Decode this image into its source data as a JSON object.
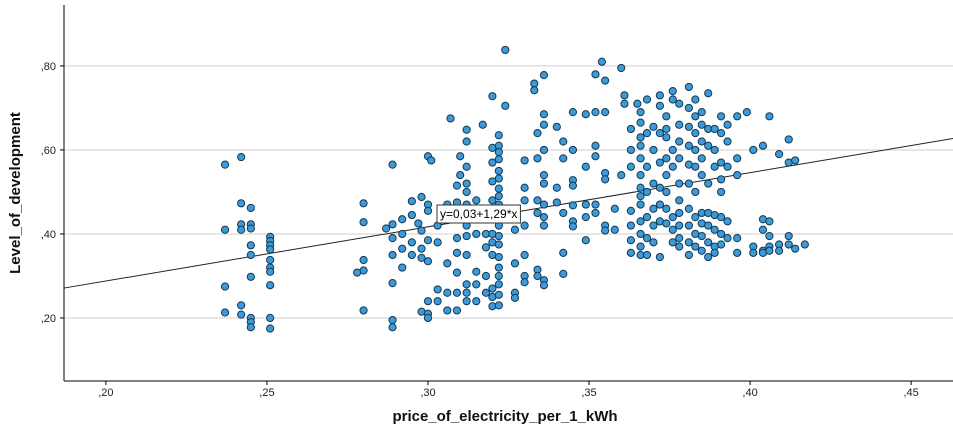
{
  "chart_data": {
    "type": "scatter",
    "xlabel": "price_of_electricity_per_1_kWh",
    "ylabel": "Level_of_development",
    "xlim": [
      0.187,
      0.463
    ],
    "ylim": [
      0.05,
      0.945
    ],
    "x_ticks": [
      {
        "value": 0.2,
        "label": ",20"
      },
      {
        "value": 0.25,
        "label": ",25"
      },
      {
        "value": 0.3,
        "label": ",30"
      },
      {
        "value": 0.35,
        "label": ",35"
      },
      {
        "value": 0.4,
        "label": ",40"
      },
      {
        "value": 0.45,
        "label": ",45"
      }
    ],
    "y_ticks": [
      {
        "value": 0.2,
        "label": ",20"
      },
      {
        "value": 0.4,
        "label": ",40"
      },
      {
        "value": 0.6,
        "label": ",60"
      },
      {
        "value": 0.8,
        "label": ",80"
      }
    ],
    "grid": "horizontal",
    "fit_line": {
      "intercept": 0.03,
      "slope": 1.29,
      "label": "y=0,03+1,29*x"
    },
    "point_fill": "#3d9ad6",
    "point_stroke": "#123a55",
    "points": [
      [
        0.237,
        0.565
      ],
      [
        0.242,
        0.583
      ],
      [
        0.237,
        0.41
      ],
      [
        0.237,
        0.275
      ],
      [
        0.237,
        0.213
      ],
      [
        0.242,
        0.473
      ],
      [
        0.242,
        0.423
      ],
      [
        0.242,
        0.41
      ],
      [
        0.242,
        0.23
      ],
      [
        0.242,
        0.208
      ],
      [
        0.245,
        0.462
      ],
      [
        0.245,
        0.423
      ],
      [
        0.245,
        0.413
      ],
      [
        0.245,
        0.373
      ],
      [
        0.245,
        0.35
      ],
      [
        0.245,
        0.298
      ],
      [
        0.245,
        0.2
      ],
      [
        0.245,
        0.19
      ],
      [
        0.245,
        0.178
      ],
      [
        0.251,
        0.393
      ],
      [
        0.251,
        0.383
      ],
      [
        0.251,
        0.373
      ],
      [
        0.251,
        0.363
      ],
      [
        0.251,
        0.338
      ],
      [
        0.251,
        0.32
      ],
      [
        0.251,
        0.31
      ],
      [
        0.251,
        0.278
      ],
      [
        0.251,
        0.2
      ],
      [
        0.251,
        0.175
      ],
      [
        0.28,
        0.473
      ],
      [
        0.28,
        0.428
      ],
      [
        0.28,
        0.338
      ],
      [
        0.28,
        0.313
      ],
      [
        0.278,
        0.308
      ],
      [
        0.28,
        0.218
      ],
      [
        0.289,
        0.565
      ],
      [
        0.289,
        0.423
      ],
      [
        0.289,
        0.39
      ],
      [
        0.289,
        0.35
      ],
      [
        0.289,
        0.283
      ],
      [
        0.289,
        0.195
      ],
      [
        0.289,
        0.178
      ],
      [
        0.287,
        0.413
      ],
      [
        0.292,
        0.435
      ],
      [
        0.292,
        0.4
      ],
      [
        0.292,
        0.365
      ],
      [
        0.292,
        0.32
      ],
      [
        0.295,
        0.478
      ],
      [
        0.295,
        0.445
      ],
      [
        0.295,
        0.38
      ],
      [
        0.295,
        0.35
      ],
      [
        0.298,
        0.488
      ],
      [
        0.297,
        0.425
      ],
      [
        0.298,
        0.408
      ],
      [
        0.298,
        0.365
      ],
      [
        0.298,
        0.343
      ],
      [
        0.298,
        0.215
      ],
      [
        0.3,
        0.585
      ],
      [
        0.301,
        0.575
      ],
      [
        0.3,
        0.47
      ],
      [
        0.3,
        0.455
      ],
      [
        0.3,
        0.385
      ],
      [
        0.3,
        0.335
      ],
      [
        0.3,
        0.24
      ],
      [
        0.3,
        0.21
      ],
      [
        0.3,
        0.2
      ],
      [
        0.303,
        0.42
      ],
      [
        0.303,
        0.38
      ],
      [
        0.303,
        0.268
      ],
      [
        0.303,
        0.24
      ],
      [
        0.306,
        0.47
      ],
      [
        0.306,
        0.45
      ],
      [
        0.306,
        0.33
      ],
      [
        0.306,
        0.26
      ],
      [
        0.306,
        0.218
      ],
      [
        0.309,
        0.515
      ],
      [
        0.309,
        0.475
      ],
      [
        0.309,
        0.438
      ],
      [
        0.309,
        0.39
      ],
      [
        0.309,
        0.355
      ],
      [
        0.309,
        0.308
      ],
      [
        0.309,
        0.26
      ],
      [
        0.309,
        0.218
      ],
      [
        0.307,
        0.675
      ],
      [
        0.312,
        0.648
      ],
      [
        0.312,
        0.62
      ],
      [
        0.31,
        0.585
      ],
      [
        0.312,
        0.56
      ],
      [
        0.31,
        0.54
      ],
      [
        0.312,
        0.52
      ],
      [
        0.312,
        0.5
      ],
      [
        0.312,
        0.47
      ],
      [
        0.312,
        0.45
      ],
      [
        0.312,
        0.42
      ],
      [
        0.312,
        0.395
      ],
      [
        0.312,
        0.35
      ],
      [
        0.312,
        0.28
      ],
      [
        0.312,
        0.26
      ],
      [
        0.312,
        0.24
      ],
      [
        0.315,
        0.48
      ],
      [
        0.315,
        0.45
      ],
      [
        0.315,
        0.4
      ],
      [
        0.315,
        0.31
      ],
      [
        0.315,
        0.28
      ],
      [
        0.315,
        0.24
      ],
      [
        0.317,
        0.66
      ],
      [
        0.318,
        0.45
      ],
      [
        0.318,
        0.4
      ],
      [
        0.318,
        0.368
      ],
      [
        0.318,
        0.3
      ],
      [
        0.318,
        0.26
      ],
      [
        0.32,
        0.728
      ],
      [
        0.32,
        0.605
      ],
      [
        0.32,
        0.57
      ],
      [
        0.32,
        0.525
      ],
      [
        0.32,
        0.48
      ],
      [
        0.32,
        0.44
      ],
      [
        0.32,
        0.4
      ],
      [
        0.32,
        0.38
      ],
      [
        0.32,
        0.35
      ],
      [
        0.32,
        0.27
      ],
      [
        0.32,
        0.25
      ],
      [
        0.32,
        0.228
      ],
      [
        0.322,
        0.635
      ],
      [
        0.322,
        0.61
      ],
      [
        0.322,
        0.595
      ],
      [
        0.322,
        0.578
      ],
      [
        0.322,
        0.55
      ],
      [
        0.322,
        0.532
      ],
      [
        0.322,
        0.508
      ],
      [
        0.322,
        0.49
      ],
      [
        0.322,
        0.47
      ],
      [
        0.322,
        0.45
      ],
      [
        0.322,
        0.42
      ],
      [
        0.322,
        0.395
      ],
      [
        0.322,
        0.375
      ],
      [
        0.322,
        0.345
      ],
      [
        0.322,
        0.32
      ],
      [
        0.322,
        0.3
      ],
      [
        0.322,
        0.28
      ],
      [
        0.322,
        0.255
      ],
      [
        0.322,
        0.23
      ],
      [
        0.324,
        0.705
      ],
      [
        0.324,
        0.838
      ],
      [
        0.327,
        0.45
      ],
      [
        0.327,
        0.41
      ],
      [
        0.327,
        0.33
      ],
      [
        0.327,
        0.26
      ],
      [
        0.327,
        0.248
      ],
      [
        0.33,
        0.575
      ],
      [
        0.33,
        0.51
      ],
      [
        0.33,
        0.48
      ],
      [
        0.33,
        0.42
      ],
      [
        0.33,
        0.35
      ],
      [
        0.33,
        0.3
      ],
      [
        0.33,
        0.285
      ],
      [
        0.333,
        0.758
      ],
      [
        0.333,
        0.742
      ],
      [
        0.334,
        0.64
      ],
      [
        0.334,
        0.58
      ],
      [
        0.334,
        0.48
      ],
      [
        0.334,
        0.45
      ],
      [
        0.334,
        0.315
      ],
      [
        0.334,
        0.3
      ],
      [
        0.336,
        0.778
      ],
      [
        0.336,
        0.685
      ],
      [
        0.336,
        0.66
      ],
      [
        0.336,
        0.6
      ],
      [
        0.336,
        0.54
      ],
      [
        0.336,
        0.52
      ],
      [
        0.336,
        0.47
      ],
      [
        0.336,
        0.44
      ],
      [
        0.336,
        0.42
      ],
      [
        0.336,
        0.29
      ],
      [
        0.336,
        0.278
      ],
      [
        0.34,
        0.655
      ],
      [
        0.34,
        0.51
      ],
      [
        0.34,
        0.475
      ],
      [
        0.342,
        0.62
      ],
      [
        0.342,
        0.58
      ],
      [
        0.342,
        0.45
      ],
      [
        0.342,
        0.355
      ],
      [
        0.342,
        0.305
      ],
      [
        0.345,
        0.69
      ],
      [
        0.345,
        0.6
      ],
      [
        0.345,
        0.528
      ],
      [
        0.345,
        0.515
      ],
      [
        0.345,
        0.468
      ],
      [
        0.345,
        0.43
      ],
      [
        0.345,
        0.418
      ],
      [
        0.349,
        0.685
      ],
      [
        0.349,
        0.56
      ],
      [
        0.349,
        0.47
      ],
      [
        0.349,
        0.44
      ],
      [
        0.349,
        0.385
      ],
      [
        0.352,
        0.78
      ],
      [
        0.352,
        0.69
      ],
      [
        0.352,
        0.61
      ],
      [
        0.352,
        0.585
      ],
      [
        0.352,
        0.47
      ],
      [
        0.352,
        0.45
      ],
      [
        0.354,
        0.81
      ],
      [
        0.355,
        0.765
      ],
      [
        0.355,
        0.69
      ],
      [
        0.355,
        0.545
      ],
      [
        0.355,
        0.53
      ],
      [
        0.355,
        0.42
      ],
      [
        0.355,
        0.408
      ],
      [
        0.358,
        0.46
      ],
      [
        0.358,
        0.41
      ],
      [
        0.36,
        0.795
      ],
      [
        0.36,
        0.54
      ],
      [
        0.361,
        0.73
      ],
      [
        0.361,
        0.71
      ],
      [
        0.363,
        0.65
      ],
      [
        0.363,
        0.6
      ],
      [
        0.363,
        0.56
      ],
      [
        0.363,
        0.455
      ],
      [
        0.363,
        0.42
      ],
      [
        0.363,
        0.385
      ],
      [
        0.363,
        0.355
      ],
      [
        0.365,
        0.71
      ],
      [
        0.366,
        0.69
      ],
      [
        0.366,
        0.665
      ],
      [
        0.366,
        0.63
      ],
      [
        0.366,
        0.61
      ],
      [
        0.366,
        0.58
      ],
      [
        0.366,
        0.54
      ],
      [
        0.366,
        0.51
      ],
      [
        0.366,
        0.49
      ],
      [
        0.366,
        0.47
      ],
      [
        0.366,
        0.43
      ],
      [
        0.366,
        0.4
      ],
      [
        0.366,
        0.37
      ],
      [
        0.366,
        0.35
      ],
      [
        0.368,
        0.72
      ],
      [
        0.368,
        0.64
      ],
      [
        0.368,
        0.56
      ],
      [
        0.368,
        0.5
      ],
      [
        0.368,
        0.44
      ],
      [
        0.368,
        0.39
      ],
      [
        0.368,
        0.35
      ],
      [
        0.37,
        0.655
      ],
      [
        0.37,
        0.6
      ],
      [
        0.37,
        0.52
      ],
      [
        0.37,
        0.46
      ],
      [
        0.37,
        0.42
      ],
      [
        0.37,
        0.38
      ],
      [
        0.372,
        0.73
      ],
      [
        0.372,
        0.705
      ],
      [
        0.372,
        0.64
      ],
      [
        0.372,
        0.57
      ],
      [
        0.372,
        0.51
      ],
      [
        0.372,
        0.47
      ],
      [
        0.372,
        0.43
      ],
      [
        0.372,
        0.345
      ],
      [
        0.374,
        0.68
      ],
      [
        0.374,
        0.65
      ],
      [
        0.374,
        0.63
      ],
      [
        0.374,
        0.58
      ],
      [
        0.374,
        0.54
      ],
      [
        0.374,
        0.5
      ],
      [
        0.374,
        0.46
      ],
      [
        0.374,
        0.425
      ],
      [
        0.376,
        0.74
      ],
      [
        0.376,
        0.72
      ],
      [
        0.376,
        0.6
      ],
      [
        0.376,
        0.56
      ],
      [
        0.376,
        0.44
      ],
      [
        0.376,
        0.41
      ],
      [
        0.376,
        0.38
      ],
      [
        0.378,
        0.71
      ],
      [
        0.378,
        0.66
      ],
      [
        0.378,
        0.62
      ],
      [
        0.378,
        0.58
      ],
      [
        0.378,
        0.52
      ],
      [
        0.378,
        0.48
      ],
      [
        0.378,
        0.45
      ],
      [
        0.378,
        0.42
      ],
      [
        0.378,
        0.39
      ],
      [
        0.378,
        0.37
      ],
      [
        0.381,
        0.75
      ],
      [
        0.381,
        0.7
      ],
      [
        0.381,
        0.655
      ],
      [
        0.381,
        0.61
      ],
      [
        0.381,
        0.565
      ],
      [
        0.381,
        0.52
      ],
      [
        0.381,
        0.46
      ],
      [
        0.381,
        0.42
      ],
      [
        0.381,
        0.38
      ],
      [
        0.381,
        0.35
      ],
      [
        0.383,
        0.72
      ],
      [
        0.383,
        0.68
      ],
      [
        0.383,
        0.64
      ],
      [
        0.383,
        0.6
      ],
      [
        0.383,
        0.56
      ],
      [
        0.383,
        0.5
      ],
      [
        0.383,
        0.44
      ],
      [
        0.383,
        0.4
      ],
      [
        0.383,
        0.37
      ],
      [
        0.385,
        0.69
      ],
      [
        0.385,
        0.66
      ],
      [
        0.385,
        0.62
      ],
      [
        0.385,
        0.58
      ],
      [
        0.385,
        0.54
      ],
      [
        0.385,
        0.45
      ],
      [
        0.385,
        0.425
      ],
      [
        0.385,
        0.395
      ],
      [
        0.385,
        0.36
      ],
      [
        0.387,
        0.735
      ],
      [
        0.387,
        0.65
      ],
      [
        0.387,
        0.61
      ],
      [
        0.387,
        0.52
      ],
      [
        0.387,
        0.45
      ],
      [
        0.387,
        0.42
      ],
      [
        0.387,
        0.38
      ],
      [
        0.387,
        0.345
      ],
      [
        0.389,
        0.65
      ],
      [
        0.389,
        0.6
      ],
      [
        0.389,
        0.56
      ],
      [
        0.389,
        0.445
      ],
      [
        0.389,
        0.41
      ],
      [
        0.389,
        0.37
      ],
      [
        0.389,
        0.355
      ],
      [
        0.391,
        0.68
      ],
      [
        0.391,
        0.64
      ],
      [
        0.391,
        0.57
      ],
      [
        0.391,
        0.53
      ],
      [
        0.391,
        0.5
      ],
      [
        0.391,
        0.44
      ],
      [
        0.391,
        0.4
      ],
      [
        0.391,
        0.375
      ],
      [
        0.393,
        0.66
      ],
      [
        0.393,
        0.62
      ],
      [
        0.393,
        0.56
      ],
      [
        0.393,
        0.43
      ],
      [
        0.393,
        0.39
      ],
      [
        0.396,
        0.68
      ],
      [
        0.396,
        0.58
      ],
      [
        0.396,
        0.54
      ],
      [
        0.396,
        0.39
      ],
      [
        0.396,
        0.355
      ],
      [
        0.399,
        0.69
      ],
      [
        0.401,
        0.6
      ],
      [
        0.401,
        0.37
      ],
      [
        0.401,
        0.355
      ],
      [
        0.404,
        0.61
      ],
      [
        0.404,
        0.435
      ],
      [
        0.404,
        0.41
      ],
      [
        0.404,
        0.36
      ],
      [
        0.404,
        0.355
      ],
      [
        0.406,
        0.68
      ],
      [
        0.406,
        0.43
      ],
      [
        0.406,
        0.395
      ],
      [
        0.406,
        0.37
      ],
      [
        0.406,
        0.36
      ],
      [
        0.409,
        0.59
      ],
      [
        0.409,
        0.375
      ],
      [
        0.409,
        0.36
      ],
      [
        0.412,
        0.625
      ],
      [
        0.412,
        0.57
      ],
      [
        0.412,
        0.395
      ],
      [
        0.412,
        0.375
      ],
      [
        0.414,
        0.575
      ],
      [
        0.414,
        0.365
      ],
      [
        0.417,
        0.375
      ]
    ]
  }
}
